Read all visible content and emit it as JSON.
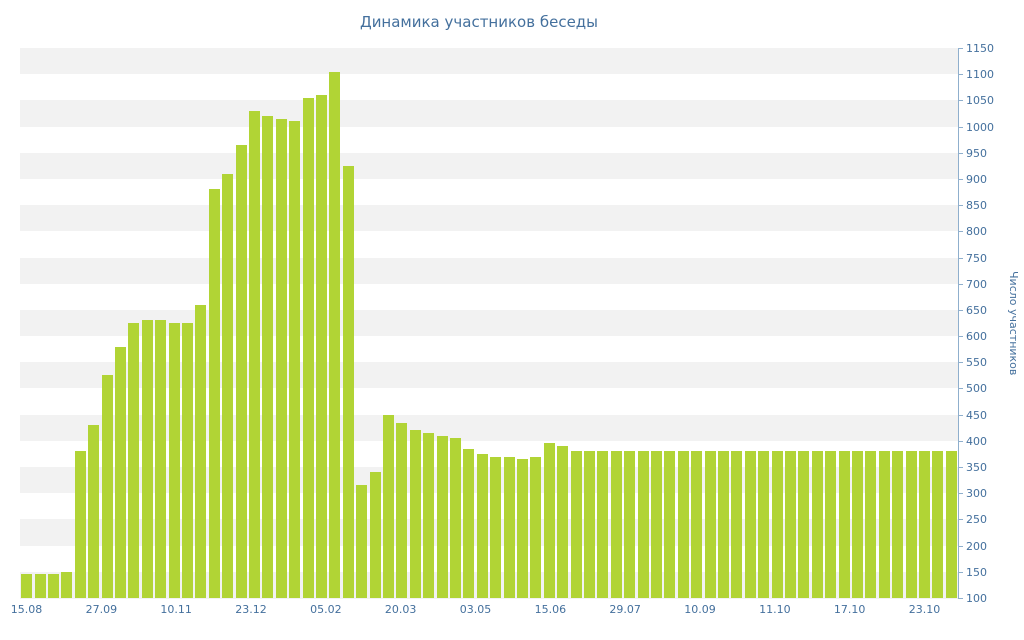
{
  "chart_data": {
    "type": "bar",
    "title": "Динамика участников беседы",
    "xlabel": "",
    "ylabel": "Число участников",
    "ylim": [
      100,
      1150
    ],
    "y_min": 100,
    "y_max": 1150,
    "y_step": 50,
    "grid": "alternating-horizontal-bands",
    "legend_position": "none",
    "x_tick_labels": [
      "15.08",
      "27.09",
      "10.11",
      "23.12",
      "05.02",
      "20.03",
      "03.05",
      "15.06",
      "29.07",
      "10.09",
      "11.10",
      "17.10",
      "23.10"
    ],
    "values": [
      145,
      145,
      145,
      150,
      380,
      430,
      525,
      580,
      625,
      630,
      630,
      625,
      625,
      660,
      880,
      910,
      965,
      1030,
      1020,
      1015,
      1010,
      1055,
      1060,
      1105,
      925,
      315,
      340,
      450,
      435,
      420,
      415,
      410,
      405,
      385,
      375,
      370,
      370,
      365,
      370,
      395,
      390,
      380,
      380,
      380,
      380,
      380,
      380,
      380,
      380,
      380,
      380,
      380,
      380,
      380,
      380,
      380,
      380,
      380,
      380,
      380,
      380,
      380,
      380,
      380,
      380,
      380,
      380,
      380,
      380,
      380
    ],
    "colors": {
      "bar": "#b1d435",
      "band": "#f2f2f2",
      "axis": "#8fafcd",
      "text": "#44709d",
      "background": "#ffffff"
    }
  }
}
